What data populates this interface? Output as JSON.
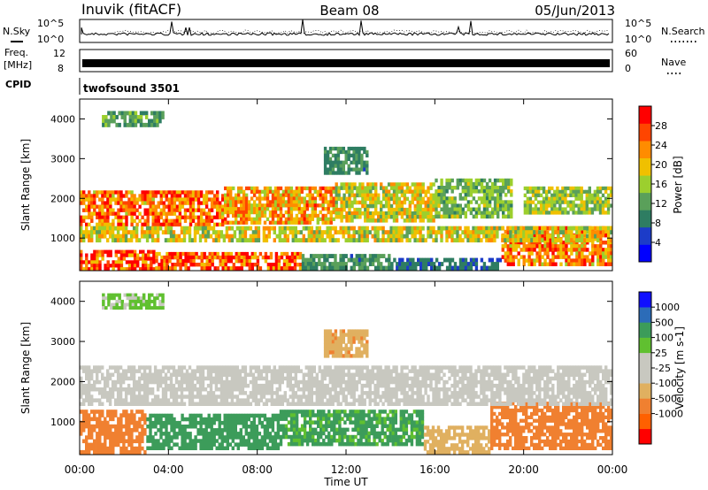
{
  "header": {
    "station": "Inuvik (fitACF)",
    "beam": "Beam 08",
    "date": "05/Jun/2013"
  },
  "noise_panel": {
    "left_label": "N.Sky",
    "right_label": "N.Search",
    "ticks": [
      "10^5",
      "10^0"
    ]
  },
  "freq_panel": {
    "left_label_1": "Freq.",
    "left_label_2": "[MHz]",
    "left_ticks": [
      "12",
      "8"
    ],
    "right_label": "Nave",
    "right_ticks": [
      "60",
      "0"
    ]
  },
  "cpid_panel": {
    "label": "CPID",
    "program": "twofsound 3501"
  },
  "x_axis": {
    "label": "Time UT",
    "ticks": [
      "00:00",
      "04:00",
      "08:00",
      "12:00",
      "16:00",
      "20:00",
      "00:00"
    ]
  },
  "colors": {
    "power": [
      "#0000ff",
      "#1c3cc8",
      "#2e7d62",
      "#5aa05a",
      "#9ccf2e",
      "#f0c000",
      "#ff8c00",
      "#ff4500",
      "#ff0000"
    ],
    "velocity": [
      "#ff0000",
      "#ff6000",
      "#f08030",
      "#e0b060",
      "#c8c8c0",
      "#c8c8c0",
      "#60c030",
      "#3c9c5a",
      "#2c6cb8",
      "#1010ff"
    ]
  },
  "chart_data": [
    {
      "type": "heatmap",
      "title": "Power",
      "xlabel": "Time UT",
      "ylabel": "Slant Range [km]",
      "xlim": [
        0,
        24
      ],
      "ylim": [
        180,
        4500
      ],
      "yticks": [
        1000,
        2000,
        3000,
        4000
      ],
      "colorbar": {
        "label": "Power [dB]",
        "range": [
          0,
          32
        ],
        "ticks": [
          4,
          8,
          12,
          16,
          20,
          24,
          28
        ]
      },
      "bands": [
        {
          "t0": 0.0,
          "t1": 3.4,
          "r0": 180,
          "r1": 700,
          "value": 27
        },
        {
          "t0": 3.4,
          "t1": 10.0,
          "r0": 200,
          "r1": 650,
          "value": 26
        },
        {
          "t0": 10.0,
          "t1": 14.0,
          "r0": 200,
          "r1": 600,
          "value": 10
        },
        {
          "t0": 14.0,
          "t1": 19.0,
          "r0": 200,
          "r1": 500,
          "value": 8
        },
        {
          "t0": 19.0,
          "t1": 24.0,
          "r0": 300,
          "r1": 1300,
          "value": 24
        },
        {
          "t0": 0.0,
          "t1": 6.5,
          "r0": 1300,
          "r1": 2200,
          "value": 25
        },
        {
          "t0": 6.5,
          "t1": 11.5,
          "r0": 1350,
          "r1": 2300,
          "value": 22
        },
        {
          "t0": 11.5,
          "t1": 16.0,
          "r0": 1400,
          "r1": 2400,
          "value": 18
        },
        {
          "t0": 16.0,
          "t1": 19.5,
          "r0": 1500,
          "r1": 2500,
          "value": 14
        },
        {
          "t0": 20.0,
          "t1": 24.0,
          "r0": 1600,
          "r1": 2300,
          "value": 16
        },
        {
          "t0": 0.0,
          "t1": 24.0,
          "r0": 900,
          "r1": 1300,
          "value": 18
        },
        {
          "t0": 1.0,
          "t1": 3.8,
          "r0": 3800,
          "r1": 4200,
          "value": 12
        },
        {
          "t0": 11.0,
          "t1": 13.0,
          "r0": 2600,
          "r1": 3300,
          "value": 10
        }
      ]
    },
    {
      "type": "heatmap",
      "title": "Velocity",
      "xlabel": "Time UT",
      "ylabel": "Slant Range [km]",
      "xlim": [
        0,
        24
      ],
      "ylim": [
        180,
        4500
      ],
      "yticks": [
        1000,
        2000,
        3000,
        4000
      ],
      "colorbar": {
        "label": "Velocity [m s-1]",
        "ticks": [
          1000,
          500,
          100,
          25,
          -25,
          -100,
          -500,
          -1000
        ]
      },
      "bands": [
        {
          "t0": 0.0,
          "t1": 3.0,
          "r0": 200,
          "r1": 1300,
          "value": -200
        },
        {
          "t0": 3.0,
          "t1": 9.0,
          "r0": 300,
          "r1": 1200,
          "value": 150
        },
        {
          "t0": 9.0,
          "t1": 15.5,
          "r0": 400,
          "r1": 1300,
          "value": 120
        },
        {
          "t0": 15.5,
          "t1": 18.5,
          "r0": 200,
          "r1": 900,
          "value": -60
        },
        {
          "t0": 18.5,
          "t1": 24.0,
          "r0": 300,
          "r1": 1500,
          "value": -300
        },
        {
          "t0": 0.0,
          "t1": 24.0,
          "r0": 1400,
          "r1": 2400,
          "value": 0
        },
        {
          "t0": 1.0,
          "t1": 3.8,
          "r0": 3800,
          "r1": 4200,
          "value": 30
        },
        {
          "t0": 11.0,
          "t1": 13.0,
          "r0": 2600,
          "r1": 3300,
          "value": -80
        }
      ]
    }
  ]
}
